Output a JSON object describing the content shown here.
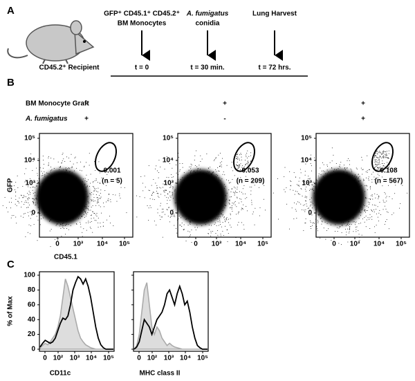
{
  "panel_a": {
    "label": "A",
    "recipient": "CD45.2⁺ Recipient",
    "steps": [
      {
        "title": [
          "GFP⁺ CD45.1⁺ CD45.2⁺",
          "BM Monocytes"
        ],
        "time": "t = 0"
      },
      {
        "title": [
          "A. fumigatus",
          "conidia"
        ],
        "time": "t = 30 min."
      },
      {
        "title": [
          "Lung Harvest"
        ],
        "time": "t = 72 hrs."
      }
    ]
  },
  "panel_b": {
    "label": "B",
    "conditions": [
      "BM Monocyte Graft",
      "A. fumigatus"
    ],
    "y_label": "GFP",
    "x_label": "CD45.1",
    "yticks": [
      "10⁵",
      "10⁴",
      "10³",
      "0"
    ],
    "xticks": [
      "0",
      "10³",
      "10⁴",
      "10⁵"
    ],
    "plots": [
      {
        "signs": [
          "-",
          "+"
        ],
        "frequency": "0.001",
        "count": "(n = 5)"
      },
      {
        "signs": [
          "+",
          "-"
        ],
        "frequency": "0.053",
        "count": "(n = 209)"
      },
      {
        "signs": [
          "+",
          "+"
        ],
        "frequency": "0.108",
        "count": "(n = 567)"
      }
    ]
  },
  "panel_c": {
    "label": "C",
    "y_label": "% of Max",
    "ylim": [
      0,
      100
    ],
    "yticks": [
      0,
      20,
      40,
      60,
      80,
      100
    ],
    "xticks": [
      "0",
      "10²",
      "10³",
      "10⁴",
      "10⁵"
    ],
    "plots": [
      {
        "x_label": "CD11c",
        "series": [
          {
            "color": "#aaaaaa",
            "fill": "#dddddd",
            "values": [
              2,
              5,
              8,
              6,
              10,
              15,
              20,
              30,
              45,
              70,
              95,
              85,
              70,
              55,
              40,
              25,
              15,
              10,
              6,
              4,
              2,
              1,
              0,
              0,
              0,
              0,
              0,
              0,
              0,
              0
            ]
          },
          {
            "color": "#000000",
            "values": [
              3,
              8,
              12,
              10,
              8,
              10,
              15,
              25,
              35,
              42,
              40,
              45,
              60,
              80,
              90,
              98,
              95,
              88,
              95,
              85,
              70,
              50,
              30,
              15,
              6,
              2,
              0,
              0,
              0,
              0
            ]
          }
        ]
      },
      {
        "x_label": "MHC class II",
        "series": [
          {
            "color": "#aaaaaa",
            "fill": "#dddddd",
            "values": [
              0,
              5,
              20,
              50,
              80,
              90,
              60,
              30,
              20,
              30,
              25,
              15,
              10,
              5,
              8,
              5,
              3,
              2,
              1,
              0,
              0,
              0,
              0,
              0,
              0,
              0,
              0,
              0,
              0,
              0
            ]
          },
          {
            "color": "#000000",
            "values": [
              0,
              3,
              10,
              25,
              40,
              35,
              30,
              20,
              30,
              40,
              45,
              50,
              60,
              75,
              80,
              70,
              60,
              75,
              85,
              75,
              60,
              65,
              50,
              30,
              15,
              5,
              2,
              0,
              0,
              0
            ]
          }
        ]
      }
    ]
  }
}
